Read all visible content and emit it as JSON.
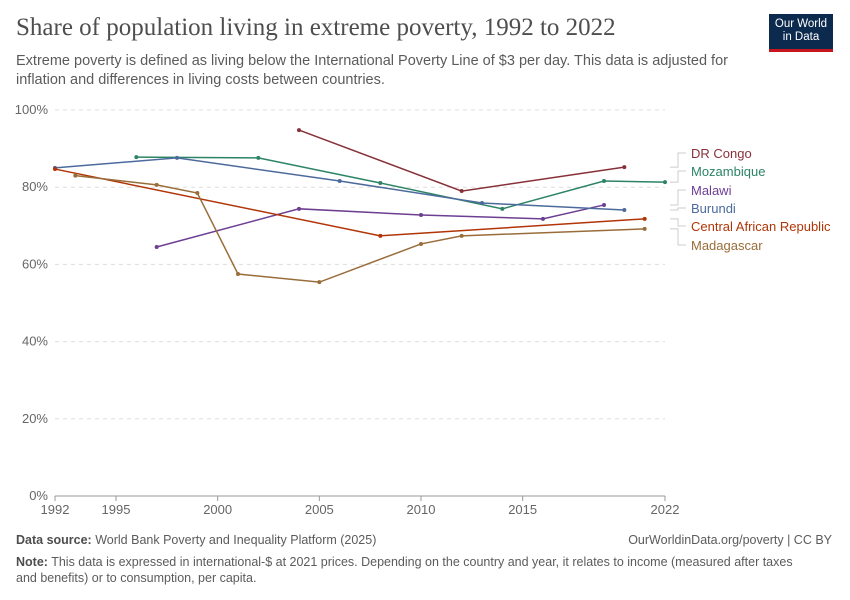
{
  "header": {
    "title": "Share of population living in extreme poverty, 1992 to 2022",
    "subtitle": "Extreme poverty is defined as living below the International Poverty Line of $3 per day. This data is adjusted for inflation and differences in living costs between countries.",
    "logo": "Our World in Data"
  },
  "footer": {
    "source_label": "Data source:",
    "source": "World Bank Poverty and Inequality Platform (2025)",
    "url": "OurWorldinData.org/poverty | CC BY",
    "note_label": "Note:",
    "note": "This data is expressed in international-$ at 2021 prices. Depending on the country and year, it relates to income (measured after taxes and benefits) or to consumption, per capita."
  },
  "chart_data": {
    "type": "line",
    "title": "Share of population living in extreme poverty, 1992 to 2022",
    "xlim": [
      1992,
      2022
    ],
    "ylim": [
      0,
      100
    ],
    "x_ticks": [
      "1992",
      "1995",
      "2000",
      "2005",
      "2010",
      "2015",
      "2022"
    ],
    "y_ticks": [
      "0%",
      "20%",
      "40%",
      "60%",
      "80%",
      "100%"
    ],
    "grid": "horizontal dashed",
    "legend": "right, inline labels",
    "series": [
      {
        "name": "DR Congo",
        "color": "#883039",
        "points": [
          [
            2004,
            94.8
          ],
          [
            2012,
            79
          ],
          [
            2020,
            85.2
          ]
        ]
      },
      {
        "name": "Mozambique",
        "color": "#2c8465",
        "points": [
          [
            1996,
            87.8
          ],
          [
            2002,
            87.6
          ],
          [
            2008,
            81.1
          ],
          [
            2014,
            74.4
          ],
          [
            2019,
            81.6
          ],
          [
            2022,
            81.3
          ]
        ]
      },
      {
        "name": "Malawi",
        "color": "#6d3e91",
        "points": [
          [
            1997,
            64.5
          ],
          [
            2004,
            74.4
          ],
          [
            2010,
            72.8
          ],
          [
            2016,
            71.8
          ],
          [
            2019,
            75.4
          ]
        ]
      },
      {
        "name": "Burundi",
        "color": "#4c6a9c",
        "points": [
          [
            1992,
            85
          ],
          [
            1998,
            87.6
          ],
          [
            2006,
            81.6
          ],
          [
            2013,
            75.9
          ],
          [
            2020,
            74.1
          ]
        ]
      },
      {
        "name": "Central African Republic",
        "color": "#b13507",
        "points": [
          [
            1992,
            84.7
          ],
          [
            2008,
            67.4
          ],
          [
            2021,
            71.8
          ]
        ]
      },
      {
        "name": "Madagascar",
        "color": "#996d39",
        "points": [
          [
            1993,
            83
          ],
          [
            1997,
            80.6
          ],
          [
            1999,
            78.5
          ],
          [
            2001,
            57.5
          ],
          [
            2005,
            55.4
          ],
          [
            2010,
            65.3
          ],
          [
            2012,
            67.4
          ],
          [
            2021,
            69.2
          ]
        ]
      }
    ]
  }
}
